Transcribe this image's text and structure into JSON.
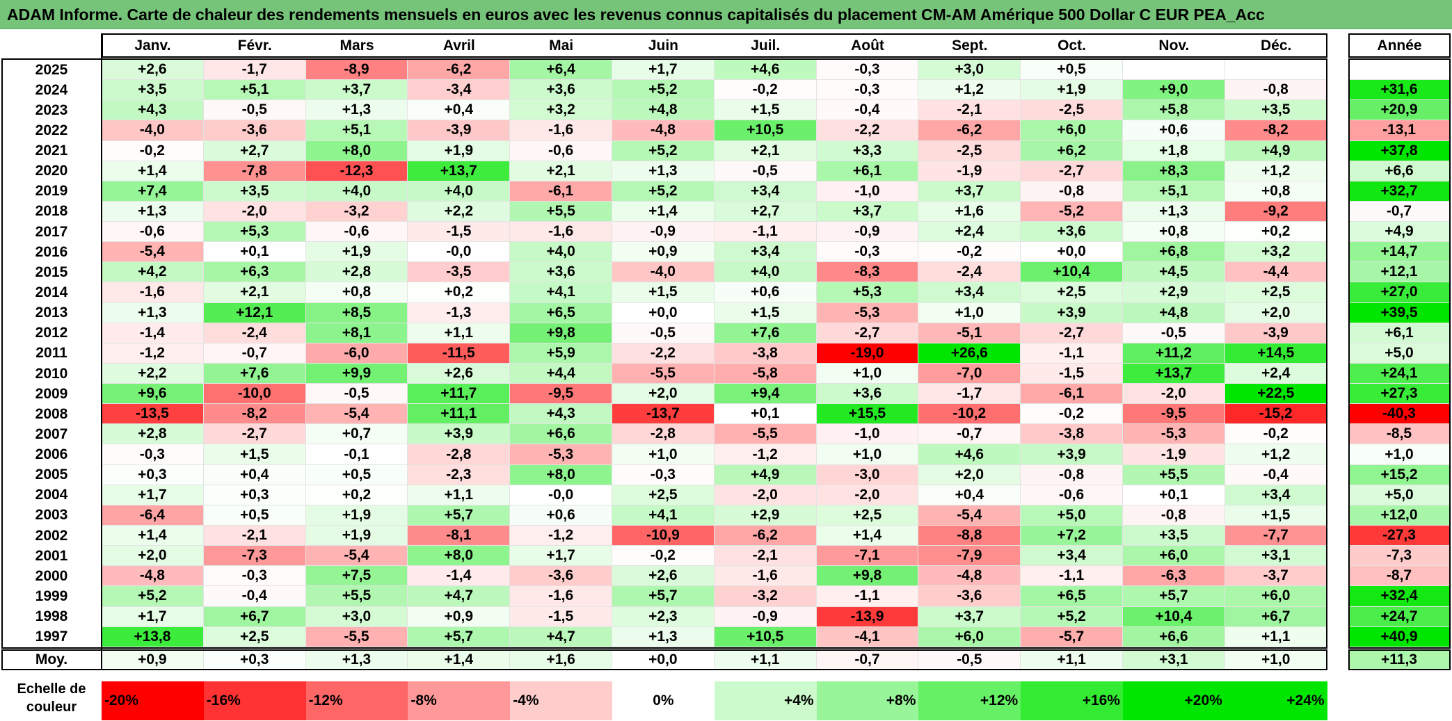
{
  "title": "ADAM Informe. Carte de chaleur des rendements mensuels en euros avec les revenus connus capitalisés du placement CM-AM Amérique 500 Dollar C EUR PEA_Acc",
  "chart_data": {
    "type": "heatmap",
    "title": "ADAM Informe. Carte de chaleur des rendements mensuels en euros avec les revenus connus capitalisés du placement CM-AM Amérique 500 Dollar C EUR PEA_Acc",
    "columns": [
      "Janv.",
      "Févr.",
      "Mars",
      "Avril",
      "Mai",
      "Juin",
      "Juil.",
      "Août",
      "Sept.",
      "Oct.",
      "Nov.",
      "Déc."
    ],
    "year_column_label": "Année",
    "rows": [
      {
        "year": "2025",
        "months": [
          "+2,6",
          "-1,7",
          "-8,9",
          "-6,2",
          "+6,4",
          "+1,7",
          "+4,6",
          "-0,3",
          "+3,0",
          "+0,5",
          "",
          ""
        ],
        "annual": ""
      },
      {
        "year": "2024",
        "months": [
          "+3,5",
          "+5,1",
          "+3,7",
          "-3,4",
          "+3,6",
          "+5,2",
          "-0,2",
          "-0,3",
          "+1,2",
          "+1,9",
          "+9,0",
          "-0,8"
        ],
        "annual": "+31,6"
      },
      {
        "year": "2023",
        "months": [
          "+4,3",
          "-0,5",
          "+1,3",
          "+0,4",
          "+3,2",
          "+4,8",
          "+1,5",
          "-0,4",
          "-2,1",
          "-2,5",
          "+5,8",
          "+3,5"
        ],
        "annual": "+20,9"
      },
      {
        "year": "2022",
        "months": [
          "-4,0",
          "-3,6",
          "+5,1",
          "-3,9",
          "-1,6",
          "-4,8",
          "+10,5",
          "-2,2",
          "-6,2",
          "+6,0",
          "+0,6",
          "-8,2"
        ],
        "annual": "-13,1"
      },
      {
        "year": "2021",
        "months": [
          "-0,2",
          "+2,7",
          "+8,0",
          "+1,9",
          "-0,6",
          "+5,2",
          "+2,1",
          "+3,3",
          "-2,5",
          "+6,2",
          "+1,8",
          "+4,9"
        ],
        "annual": "+37,8"
      },
      {
        "year": "2020",
        "months": [
          "+1,4",
          "-7,8",
          "-12,3",
          "+13,7",
          "+2,1",
          "+1,3",
          "-0,5",
          "+6,1",
          "-1,9",
          "-2,7",
          "+8,3",
          "+1,2"
        ],
        "annual": "+6,6"
      },
      {
        "year": "2019",
        "months": [
          "+7,4",
          "+3,5",
          "+4,0",
          "+4,0",
          "-6,1",
          "+5,2",
          "+3,4",
          "-1,0",
          "+3,7",
          "-0,8",
          "+5,1",
          "+0,8"
        ],
        "annual": "+32,7"
      },
      {
        "year": "2018",
        "months": [
          "+1,3",
          "-2,0",
          "-3,2",
          "+2,2",
          "+5,5",
          "+1,4",
          "+2,7",
          "+3,7",
          "+1,6",
          "-5,2",
          "+1,3",
          "-9,2"
        ],
        "annual": "-0,7"
      },
      {
        "year": "2017",
        "months": [
          "-0,6",
          "+5,3",
          "-0,6",
          "-1,5",
          "-1,6",
          "-0,9",
          "-1,1",
          "-0,9",
          "+2,4",
          "+3,6",
          "+0,8",
          "+0,2"
        ],
        "annual": "+4,9"
      },
      {
        "year": "2016",
        "months": [
          "-5,4",
          "+0,1",
          "+1,9",
          "-0,0",
          "+4,0",
          "+0,9",
          "+3,4",
          "-0,3",
          "-0,2",
          "+0,0",
          "+6,8",
          "+3,2"
        ],
        "annual": "+14,7"
      },
      {
        "year": "2015",
        "months": [
          "+4,2",
          "+6,3",
          "+2,8",
          "-3,5",
          "+3,6",
          "-4,0",
          "+4,0",
          "-8,3",
          "-2,4",
          "+10,4",
          "+4,5",
          "-4,4"
        ],
        "annual": "+12,1"
      },
      {
        "year": "2014",
        "months": [
          "-1,6",
          "+2,1",
          "+0,8",
          "+0,2",
          "+4,1",
          "+1,5",
          "+0,6",
          "+5,3",
          "+3,4",
          "+2,5",
          "+2,9",
          "+2,5"
        ],
        "annual": "+27,0"
      },
      {
        "year": "2013",
        "months": [
          "+1,3",
          "+12,1",
          "+8,5",
          "-1,3",
          "+6,5",
          "+0,0",
          "+1,5",
          "-5,3",
          "+1,0",
          "+3,9",
          "+4,8",
          "+2,0"
        ],
        "annual": "+39,5"
      },
      {
        "year": "2012",
        "months": [
          "-1,4",
          "-2,4",
          "+8,1",
          "+1,1",
          "+9,8",
          "-0,5",
          "+7,6",
          "-2,7",
          "-5,1",
          "-2,7",
          "-0,5",
          "-3,9"
        ],
        "annual": "+6,1"
      },
      {
        "year": "2011",
        "months": [
          "-1,2",
          "-0,7",
          "-6,0",
          "-11,5",
          "+5,9",
          "-2,2",
          "-3,8",
          "-19,0",
          "+26,6",
          "-1,1",
          "+11,2",
          "+14,5"
        ],
        "annual": "+5,0"
      },
      {
        "year": "2010",
        "months": [
          "+2,2",
          "+7,6",
          "+9,9",
          "+2,6",
          "+4,4",
          "-5,5",
          "-5,8",
          "+1,0",
          "-7,0",
          "-1,5",
          "+13,7",
          "+2,4"
        ],
        "annual": "+24,1"
      },
      {
        "year": "2009",
        "months": [
          "+9,6",
          "-10,0",
          "-0,5",
          "+11,7",
          "-9,5",
          "+2,0",
          "+9,4",
          "+3,6",
          "-1,7",
          "-6,1",
          "-2,0",
          "+22,5"
        ],
        "annual": "+27,3"
      },
      {
        "year": "2008",
        "months": [
          "-13,5",
          "-8,2",
          "-5,4",
          "+11,1",
          "+4,3",
          "-13,7",
          "+0,1",
          "+15,5",
          "-10,2",
          "-0,2",
          "-9,5",
          "-15,2"
        ],
        "annual": "-40,3"
      },
      {
        "year": "2007",
        "months": [
          "+2,8",
          "-2,7",
          "+0,7",
          "+3,9",
          "+6,6",
          "-2,8",
          "-5,5",
          "-1,0",
          "-0,7",
          "-3,8",
          "-5,3",
          "-0,2"
        ],
        "annual": "-8,5"
      },
      {
        "year": "2006",
        "months": [
          "-0,3",
          "+1,5",
          "-0,1",
          "-2,8",
          "-5,3",
          "+1,0",
          "-1,2",
          "+1,0",
          "+4,6",
          "+3,9",
          "-1,9",
          "+1,2"
        ],
        "annual": "+1,0"
      },
      {
        "year": "2005",
        "months": [
          "+0,3",
          "+0,4",
          "+0,5",
          "-2,3",
          "+8,0",
          "-0,3",
          "+4,9",
          "-3,0",
          "+2,0",
          "-0,8",
          "+5,5",
          "-0,4"
        ],
        "annual": "+15,2"
      },
      {
        "year": "2004",
        "months": [
          "+1,7",
          "+0,3",
          "+0,2",
          "+1,1",
          "-0,0",
          "+2,5",
          "-2,0",
          "-2,0",
          "+0,4",
          "-0,6",
          "+0,1",
          "+3,4"
        ],
        "annual": "+5,0"
      },
      {
        "year": "2003",
        "months": [
          "-6,4",
          "+0,5",
          "+1,9",
          "+5,7",
          "+0,6",
          "+4,1",
          "+2,9",
          "+2,5",
          "-5,4",
          "+5,0",
          "-0,8",
          "+1,5"
        ],
        "annual": "+12,0"
      },
      {
        "year": "2002",
        "months": [
          "+1,4",
          "-2,1",
          "+1,9",
          "-8,1",
          "-1,2",
          "-10,9",
          "-6,2",
          "+1,4",
          "-8,8",
          "+7,2",
          "+3,5",
          "-7,7"
        ],
        "annual": "-27,3"
      },
      {
        "year": "2001",
        "months": [
          "+2,0",
          "-7,3",
          "-5,4",
          "+8,0",
          "+1,7",
          "-0,2",
          "-2,1",
          "-7,1",
          "-7,9",
          "+3,4",
          "+6,0",
          "+3,1"
        ],
        "annual": "-7,3"
      },
      {
        "year": "2000",
        "months": [
          "-4,8",
          "-0,3",
          "+7,5",
          "-1,4",
          "-3,6",
          "+2,6",
          "-1,6",
          "+9,8",
          "-4,8",
          "-1,1",
          "-6,3",
          "-3,7"
        ],
        "annual": "-8,7"
      },
      {
        "year": "1999",
        "months": [
          "+5,2",
          "-0,4",
          "+5,5",
          "+4,7",
          "-1,6",
          "+5,7",
          "-3,2",
          "-1,1",
          "-3,6",
          "+6,5",
          "+5,7",
          "+6,0"
        ],
        "annual": "+32,4"
      },
      {
        "year": "1998",
        "months": [
          "+1,7",
          "+6,7",
          "+3,0",
          "+0,9",
          "-1,5",
          "+2,3",
          "-0,9",
          "-13,9",
          "+3,7",
          "+5,2",
          "+10,4",
          "+6,7"
        ],
        "annual": "+24,7"
      },
      {
        "year": "1997",
        "months": [
          "+13,8",
          "+2,5",
          "-5,5",
          "+5,7",
          "+4,7",
          "+1,3",
          "+10,5",
          "-4,1",
          "+6,0",
          "-5,7",
          "+6,6",
          "+1,1"
        ],
        "annual": "+40,9"
      }
    ],
    "average": {
      "label": "Moy.",
      "months": [
        "+0,9",
        "+0,3",
        "+1,3",
        "+1,4",
        "+1,6",
        "+0,0",
        "+1,1",
        "-0,7",
        "-0,5",
        "+1,1",
        "+3,1",
        "+1,0"
      ],
      "annual": "+11,3"
    },
    "scale": {
      "label_line1": "Echelle de",
      "label_line2": "couleur",
      "stops": [
        "-20%",
        "-16%",
        "-12%",
        "-8%",
        "-4%",
        "0%",
        "+4%",
        "+8%",
        "+12%",
        "+16%",
        "+20%",
        "+24%"
      ],
      "stop_values": [
        -20,
        -16,
        -12,
        -8,
        -4,
        0,
        4,
        8,
        12,
        16,
        20,
        24
      ]
    },
    "colors": {
      "negative_max": "#ff0000",
      "neutral": "#ffffff",
      "positive_max": "#00e000",
      "title_bar": "#76c47a"
    }
  }
}
